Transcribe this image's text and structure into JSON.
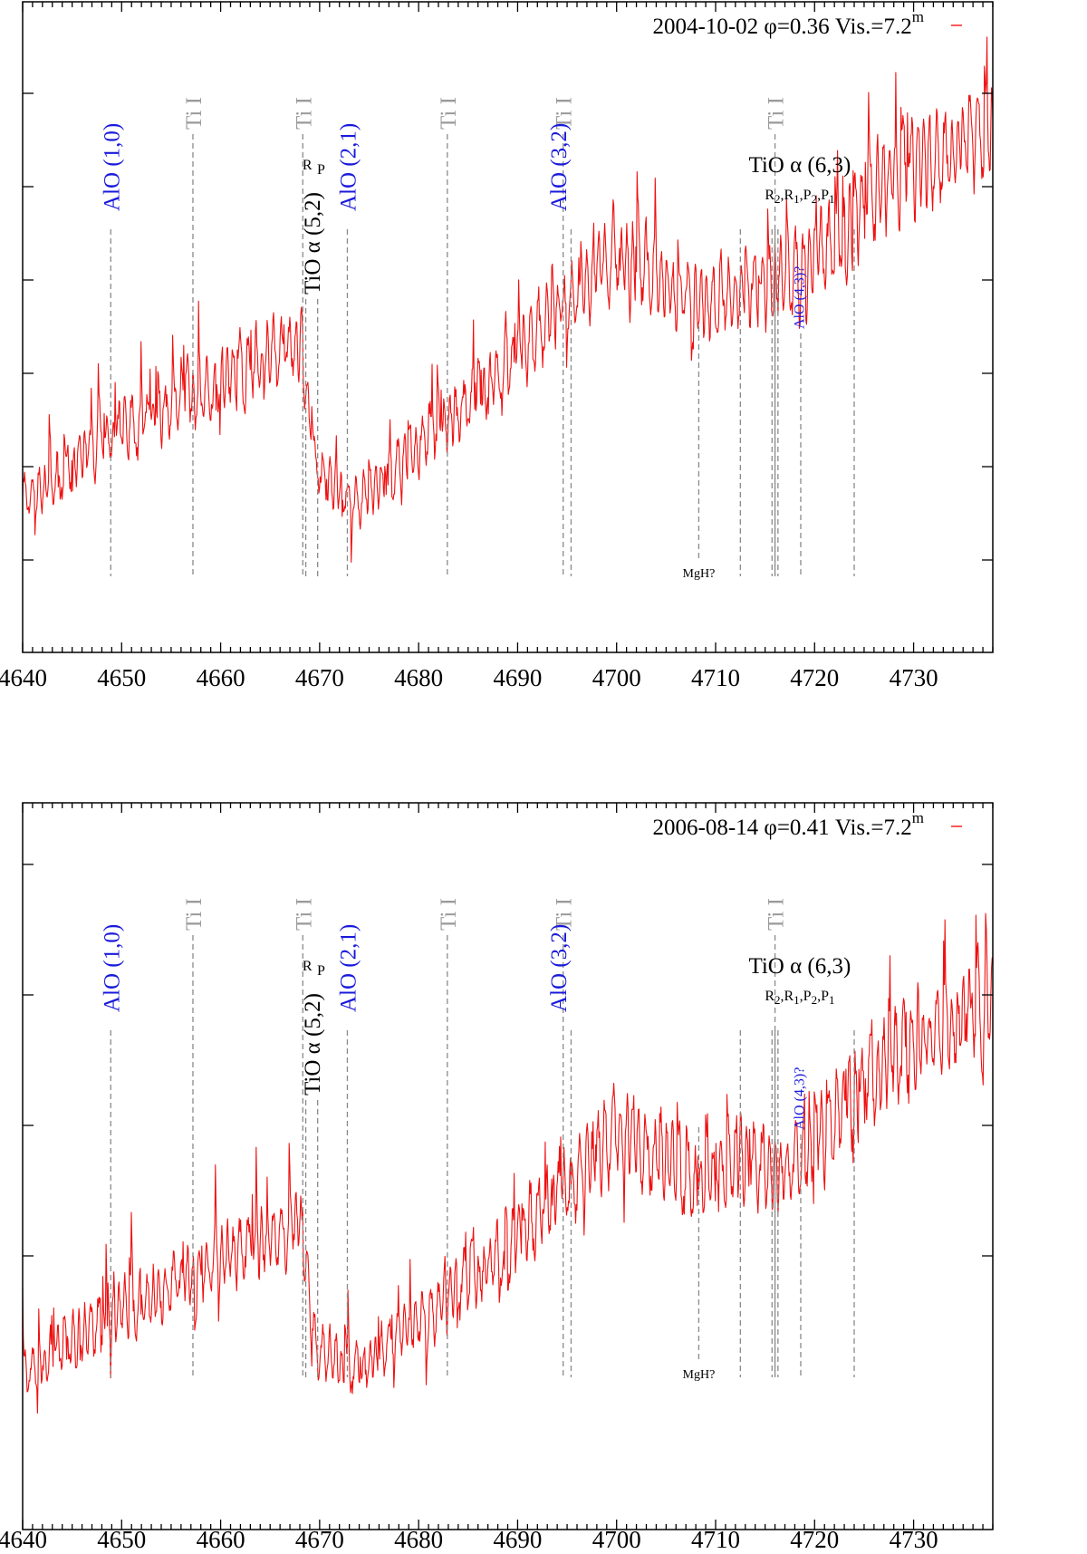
{
  "chart_data": [
    {
      "type": "line",
      "panel": "top",
      "title": "2004-10-02 φ=0.36 Vis.=7.2m",
      "legend": {
        "prefix": "2004-10-02 φ=0.36 Vis.=7.2",
        "sup": "m",
        "color": "#ee1111"
      },
      "xlim": [
        4640,
        4738
      ],
      "xticks": [
        4640,
        4650,
        4660,
        4670,
        4680,
        4690,
        4700,
        4710,
        4720,
        4730
      ],
      "ytick_count": 6,
      "series": [
        {
          "name": "2004-10-02",
          "color": "#ee1111",
          "seed": 7,
          "trend": [
            [
              4640,
              0.23
            ],
            [
              4648,
              0.33
            ],
            [
              4668,
              0.48
            ],
            [
              4669.6,
              0.28
            ],
            [
              4673.5,
              0.23
            ],
            [
              4687,
              0.41
            ],
            [
              4700,
              0.62
            ],
            [
              4708,
              0.53
            ],
            [
              4713,
              0.56
            ],
            [
              4718,
              0.57
            ],
            [
              4728,
              0.73
            ],
            [
              4738,
              0.8
            ]
          ]
        }
      ],
      "markers": {
        "ti": [
          4657.2,
          4668.3,
          4682.9,
          4694.6,
          4716.0
        ],
        "alo": [
          4648.9,
          4672.8,
          4695.4
        ],
        "tio_52": [
          4668.6,
          4669.8
        ],
        "tio_63": [
          4712.5,
          4715.7,
          4716.0,
          4716.3,
          4724.0
        ],
        "alo_43": [
          4718.6
        ],
        "mgh": [
          4708.3
        ]
      },
      "labels": {
        "ti": "Ti I",
        "alo_10": "AlO (1,0)",
        "alo_21": "AlO (2,1)",
        "alo_32": "AlO (3,2)",
        "tio_52_main": "TiO α (5,2)",
        "tio_52_R": "R",
        "tio_52_P": "P",
        "tio_63_main": "TiO α (6,3)",
        "tio_63_R": "R",
        "tio_63_P": "P",
        "sub_2": "2",
        "sub_1": "1",
        "comma": ",",
        "alo_43": "AlO (4,3)?",
        "mgh": "MgH?"
      }
    },
    {
      "type": "line",
      "panel": "bottom",
      "title": "2006-08-14 φ=0.41 Vis.=7.2m",
      "legend": {
        "prefix": "2006-08-14 φ=0.41 Vis.=7.2",
        "sup": "m",
        "color": "#ee1111"
      },
      "xlim": [
        4640,
        4738
      ],
      "xticks": [
        4640,
        4650,
        4660,
        4670,
        4680,
        4690,
        4700,
        4710,
        4720,
        4730
      ],
      "ytick_count": 4,
      "series": [
        {
          "name": "2006-08-14",
          "color": "#ee1111",
          "seed": 19,
          "trend": [
            [
              4640,
              0.21
            ],
            [
              4648,
              0.29
            ],
            [
              4668,
              0.42
            ],
            [
              4669.6,
              0.24
            ],
            [
              4673.5,
              0.22
            ],
            [
              4687,
              0.36
            ],
            [
              4700,
              0.55
            ],
            [
              4708,
              0.48
            ],
            [
              4713,
              0.51
            ],
            [
              4718,
              0.5
            ],
            [
              4728,
              0.66
            ],
            [
              4738,
              0.72
            ]
          ]
        }
      ],
      "markers": {
        "ti": [
          4657.2,
          4668.3,
          4682.9,
          4694.6,
          4716.0
        ],
        "alo": [
          4648.9,
          4672.8,
          4695.4
        ],
        "tio_52": [
          4668.6,
          4669.8
        ],
        "tio_63": [
          4712.5,
          4715.7,
          4716.0,
          4716.3,
          4724.0
        ],
        "alo_43": [
          4718.6
        ],
        "mgh": [
          4708.3
        ]
      },
      "labels": {
        "ti": "Ti I",
        "alo_10": "AlO (1,0)",
        "alo_21": "AlO (2,1)",
        "alo_32": "AlO (3,2)",
        "tio_52_main": "TiO α (5,2)",
        "tio_52_R": "R",
        "tio_52_P": "P",
        "tio_63_main": "TiO α (6,3)",
        "tio_63_R": "R",
        "tio_63_P": "P",
        "sub_2": "2",
        "sub_1": "1",
        "comma": ",",
        "alo_43": "AlO (4,3)?",
        "mgh": "MgH?"
      }
    }
  ]
}
